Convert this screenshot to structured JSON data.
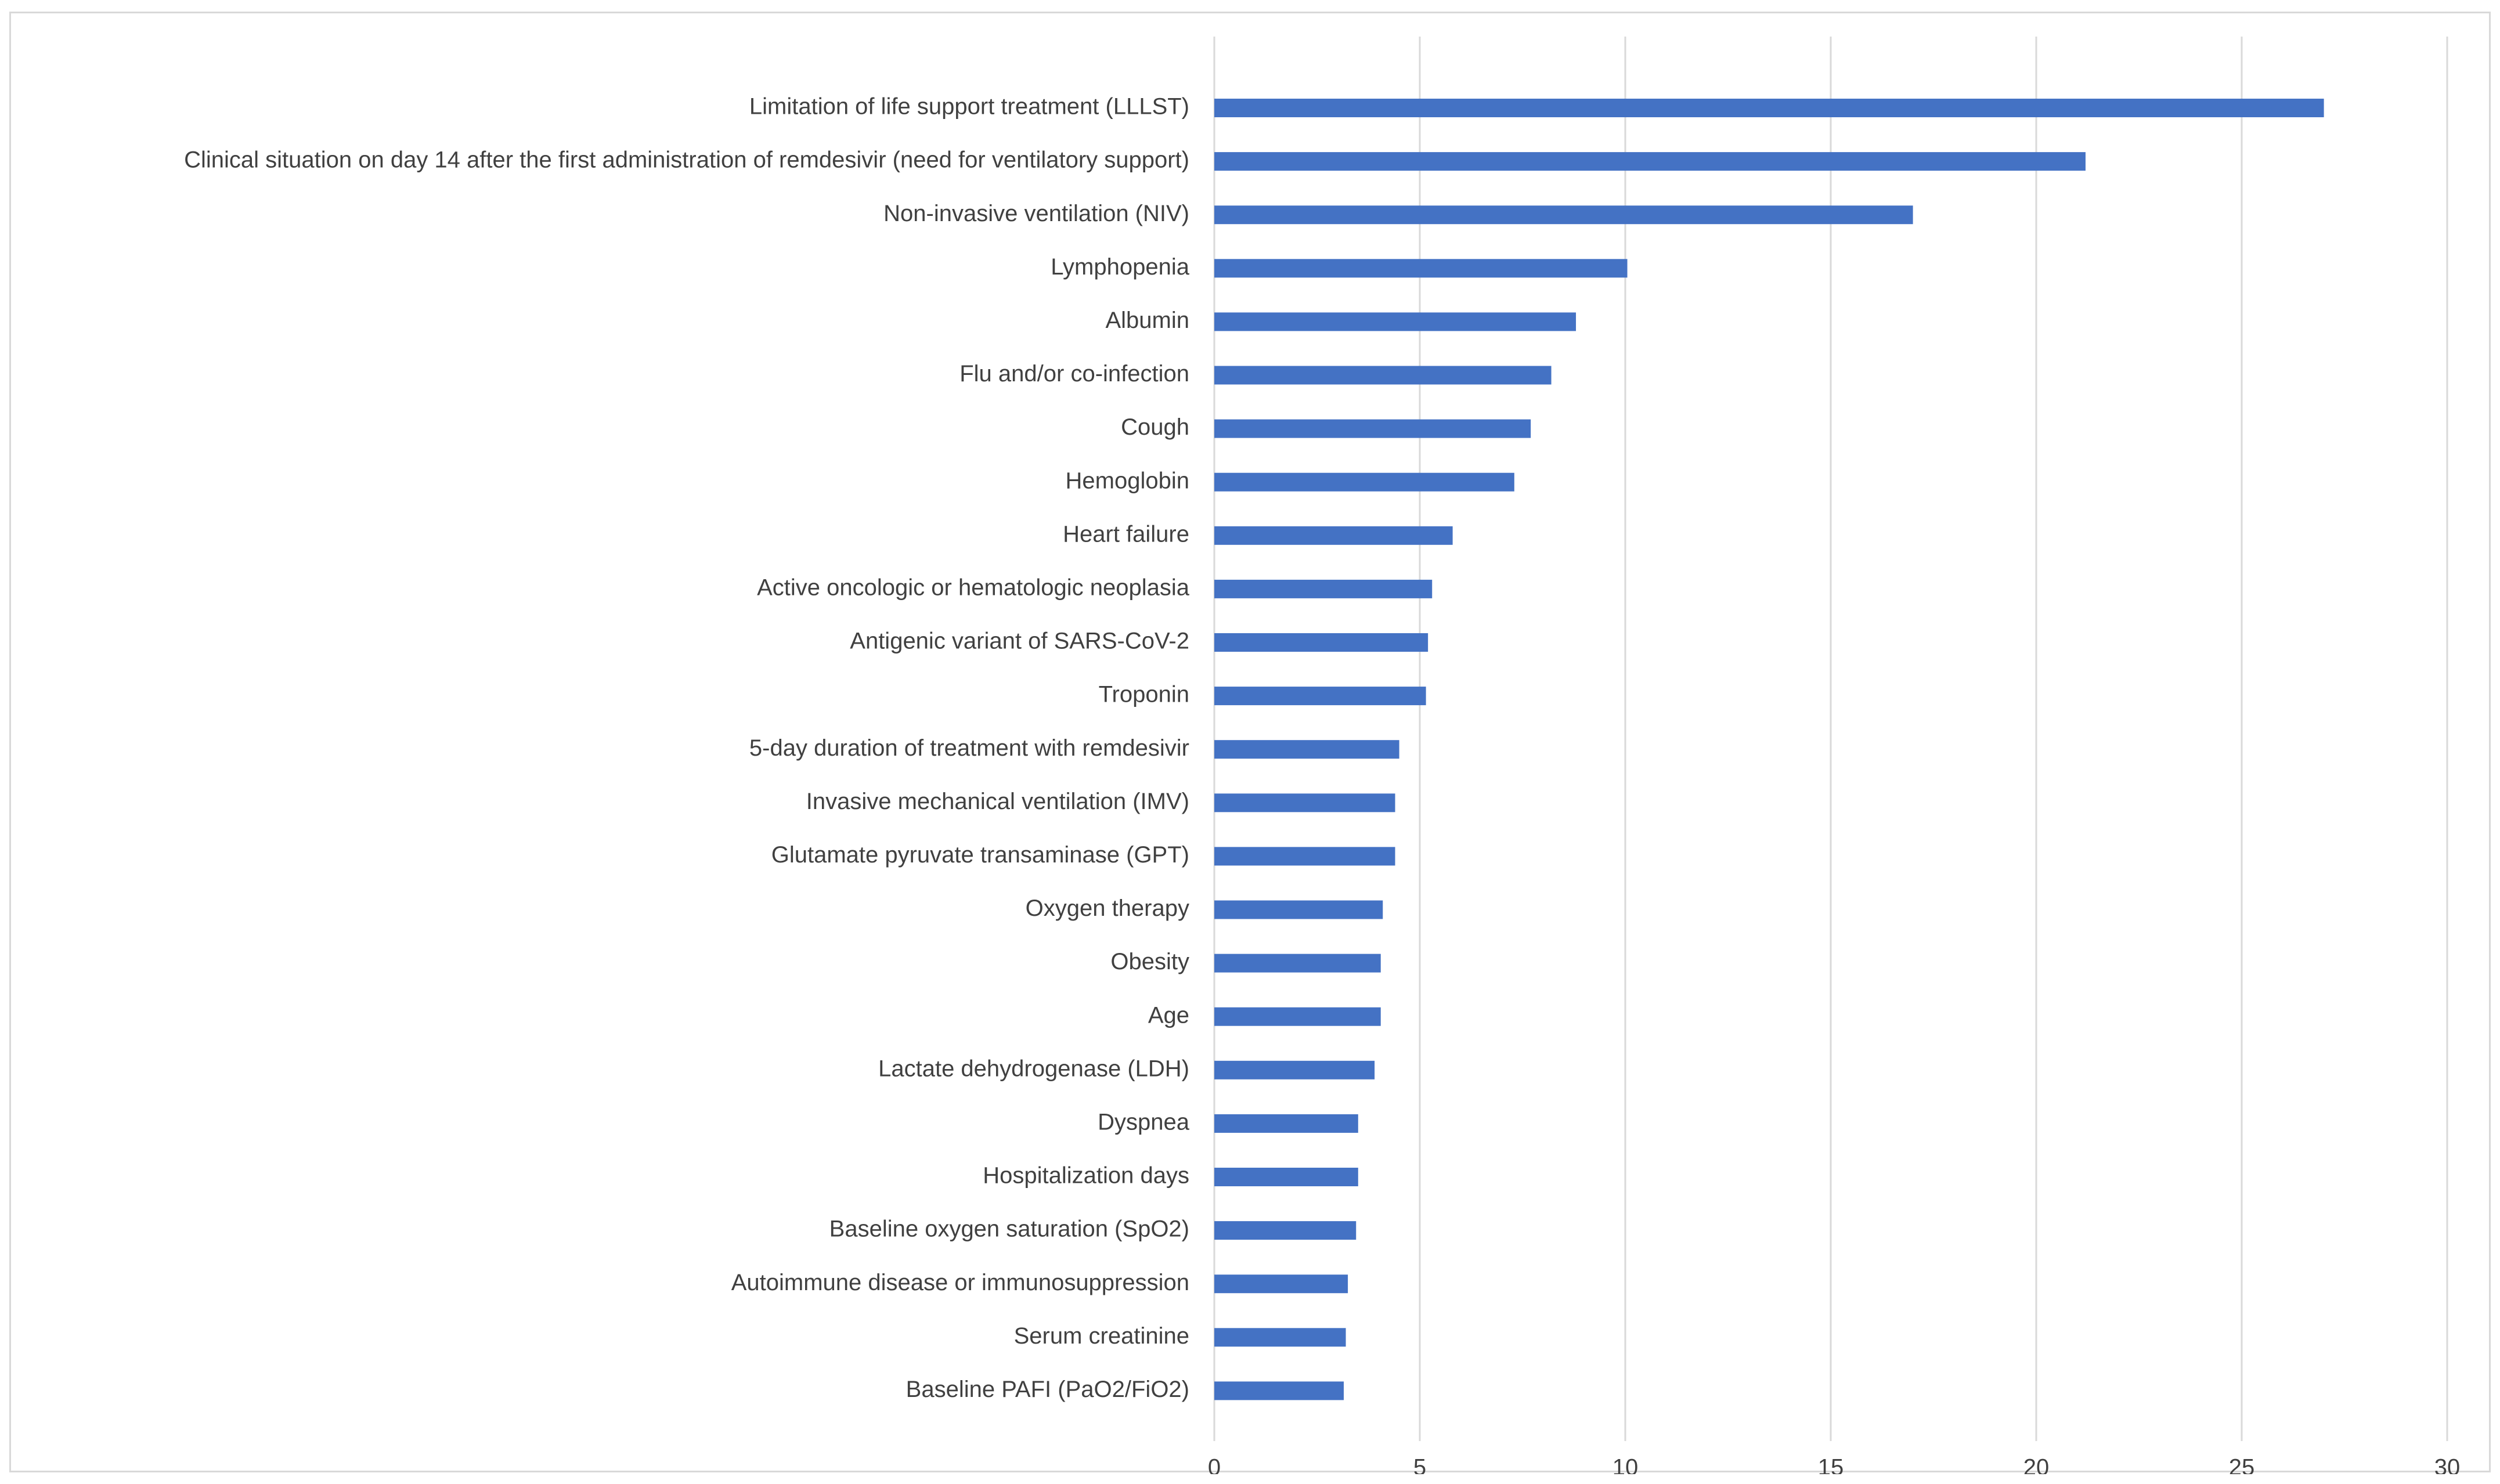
{
  "chart_data": {
    "type": "bar",
    "orientation": "horizontal",
    "title": "",
    "xlabel": "",
    "ylabel": "",
    "xlim": [
      0,
      30
    ],
    "x_ticks": [
      0,
      5,
      10,
      15,
      20,
      25,
      30
    ],
    "grid": true,
    "legend": "none",
    "bar_color": "#4472C4",
    "categories": [
      "Limitation of life support treatment (LLLST)",
      "Clinical situation on day 14 after the first administration of remdesivir (need for ventilatory support)",
      "Non-invasive ventilation (NIV)",
      "Lymphopenia",
      "Albumin",
      "Flu and/or co-infection",
      "Cough",
      "Hemoglobin",
      "Heart failure",
      "Active oncologic or hematologic neoplasia",
      "Antigenic variant of SARS-CoV-2",
      "Troponin",
      "5-day duration of treatment with remdesivir",
      "Invasive mechanical ventilation (IMV)",
      "Glutamate pyruvate transaminase (GPT)",
      "Oxygen therapy",
      "Obesity",
      "Age",
      "Lactate dehydrogenase (LDH)",
      "Dyspnea",
      "Hospitalization days",
      "Baseline oxygen saturation (SpO2)",
      "Autoimmune disease or immunosuppression",
      "Serum creatinine",
      "Baseline PAFI (PaO2/FiO2)"
    ],
    "values": [
      27.0,
      21.2,
      17.0,
      10.05,
      8.8,
      8.2,
      7.7,
      7.3,
      5.8,
      5.3,
      5.2,
      5.15,
      4.5,
      4.4,
      4.4,
      4.1,
      4.05,
      4.05,
      3.9,
      3.5,
      3.5,
      3.45,
      3.25,
      3.2,
      3.15
    ]
  }
}
